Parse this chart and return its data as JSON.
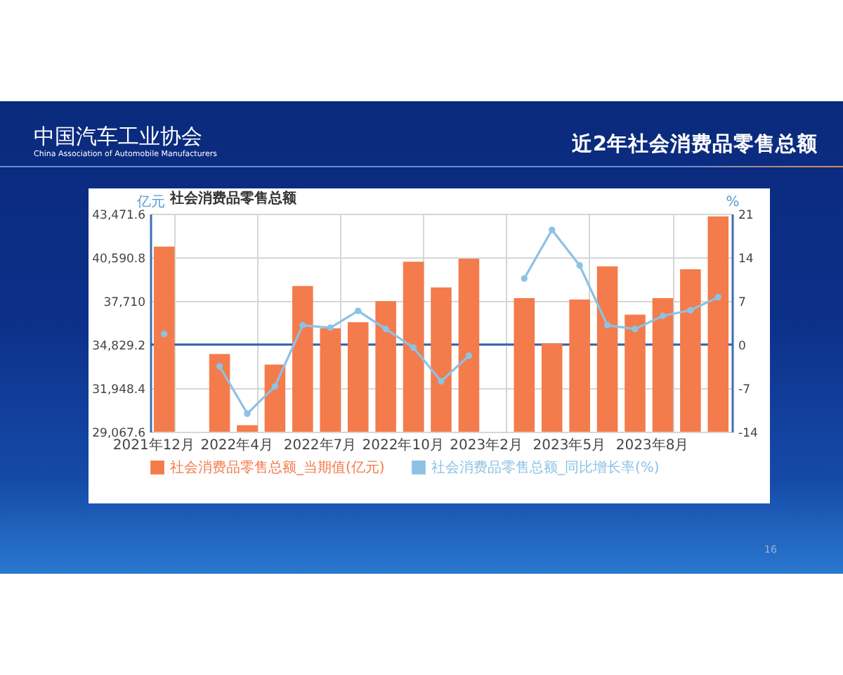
{
  "chart_data": {
    "type": "bar",
    "title": "近2年社会消费品零售总额",
    "subtitle": "社会消费品零售总额",
    "ylabel": "亿元",
    "y2label": "%",
    "categories": [
      "2021年12月",
      null,
      null,
      "2022年4月",
      null,
      null,
      "2022年7月",
      null,
      null,
      "2022年10月",
      null,
      null,
      "2023年2月",
      null,
      null,
      "2023年5月",
      null,
      null,
      "2023年8月",
      null,
      null
    ],
    "series": [
      {
        "name": "社会消费品零售总额_当期值(亿元)",
        "color": "#f47b4b",
        "values": [
          41300,
          null,
          34200,
          29500,
          33500,
          38700,
          35900,
          36300,
          37700,
          40300,
          38600,
          40500,
          null,
          37900,
          34900,
          37800,
          40000,
          36800,
          37900,
          39800,
          43300
        ]
      },
      {
        "name": "社会消费品零售总额_同比增长率(%)",
        "type": "line",
        "axis": "y2",
        "color": "#8cc2e4",
        "values": [
          1.7,
          null,
          -3.5,
          -11.1,
          -6.7,
          3.1,
          2.7,
          5.4,
          2.5,
          -0.5,
          -5.9,
          -1.8,
          null,
          10.6,
          18.4,
          12.7,
          3.1,
          2.5,
          4.6,
          5.5,
          7.6
        ]
      }
    ],
    "ylim": [
      29067.6,
      43471.6
    ],
    "yticks": [
      {
        "value": 29067.6,
        "label": "29,067.6"
      },
      {
        "value": 31948.4,
        "label": "31,948.4"
      },
      {
        "value": 34829.2,
        "label": "34,829.2"
      },
      {
        "value": 37710,
        "label": "37,710"
      },
      {
        "value": 40590.8,
        "label": "40,590.8"
      },
      {
        "value": 43471.6,
        "label": "43,471.6"
      }
    ],
    "y2lim": [
      -14,
      21
    ],
    "y2ticks": [
      -14,
      -7,
      0,
      7,
      14,
      21
    ],
    "ref_lines": [
      {
        "axis": "y2",
        "value": 0,
        "color": "#2f62ad"
      }
    ],
    "grid": true,
    "legend": "bottom",
    "marker": "circle",
    "annotations": [
      "中国汽车工业协会",
      "China Association of Automobile Manufacturers",
      "16"
    ]
  }
}
